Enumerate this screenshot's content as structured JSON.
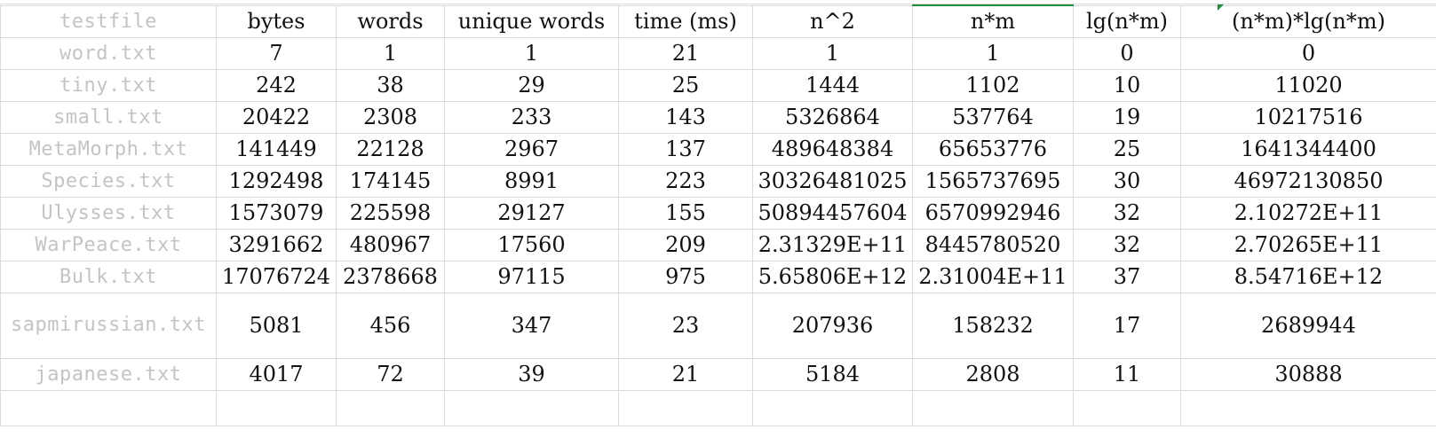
{
  "sheet": {
    "header": [
      "testfile",
      "bytes",
      "words",
      "unique words",
      "time (ms)",
      "n^2",
      "n*m",
      "lg(n*m)",
      "(n*m)*lg(n*m)"
    ],
    "rows": [
      [
        "word.txt",
        "7",
        "1",
        "1",
        "21",
        "1",
        "1",
        "0",
        "0"
      ],
      [
        "tiny.txt",
        "242",
        "38",
        "29",
        "25",
        "1444",
        "1102",
        "10",
        "11020"
      ],
      [
        "small.txt",
        "20422",
        "2308",
        "233",
        "143",
        "5326864",
        "537764",
        "19",
        "10217516"
      ],
      [
        "MetaMorph.txt",
        "141449",
        "22128",
        "2967",
        "137",
        "489648384",
        "65653776",
        "25",
        "1641344400"
      ],
      [
        "Species.txt",
        "1292498",
        "174145",
        "8991",
        "223",
        "30326481025",
        "1565737695",
        "30",
        "46972130850"
      ],
      [
        "Ulysses.txt",
        "1573079",
        "225598",
        "29127",
        "155",
        "50894457604",
        "6570992946",
        "32",
        "2.10272E+11"
      ],
      [
        "WarPeace.txt",
        "3291662",
        "480967",
        "17560",
        "209",
        "2.31329E+11",
        "8445780520",
        "32",
        "2.70265E+11"
      ],
      [
        "Bulk.txt",
        "17076724",
        "2378668",
        "97115",
        "975",
        "5.65806E+12",
        "2.31004E+11",
        "37",
        "8.54716E+12"
      ],
      [
        "sapmirussian.txt",
        "5081",
        "456",
        "347",
        "23",
        "207936",
        "158232",
        "17",
        "2689944"
      ],
      [
        "japanese.txt",
        "4017",
        "72",
        "39",
        "21",
        "5184",
        "2808",
        "11",
        "30888"
      ]
    ]
  }
}
